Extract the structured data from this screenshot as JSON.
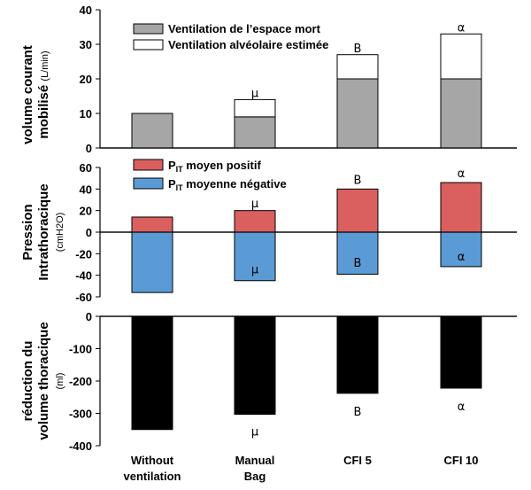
{
  "chart_data": [
    {
      "type": "bar",
      "stacked": true,
      "categories": [
        "Without ventilation",
        "Manual Bag",
        "CFI 5",
        "CFI 10"
      ],
      "ylabel": "volume courant mobilisé",
      "yunit": "(L/min)",
      "ylim": [
        0,
        40
      ],
      "yticks": [
        0,
        10,
        20,
        30,
        40
      ],
      "series": [
        {
          "name": "Ventilation de l’espace mort",
          "color": "#a6a6a6",
          "values": [
            10,
            9,
            20,
            20
          ]
        },
        {
          "name": "Ventilation alvéolaire estimée",
          "color": "#ffffff",
          "values": [
            0,
            5,
            7,
            13
          ]
        }
      ],
      "annotations": [
        {
          "category": "Manual Bag",
          "text": "µ",
          "value": 16
        },
        {
          "category": "CFI 5",
          "text": "B",
          "value": 29
        },
        {
          "category": "CFI 10",
          "text": "α",
          "value": 35
        }
      ]
    },
    {
      "type": "bar",
      "stacked": false,
      "categories": [
        "Without ventilation",
        "Manual Bag",
        "CFI 5",
        "CFI 10"
      ],
      "ylabel": "Pression Intrathoracique",
      "ylabel_lines": [
        "Pression",
        "Intrathoracique"
      ],
      "yunit": "(cmH2O)",
      "ylim": [
        -60,
        60
      ],
      "yticks": [
        -60,
        -40,
        -20,
        0,
        20,
        40,
        60
      ],
      "series": [
        {
          "name": "PIT moyen positif",
          "legend_main": "P",
          "legend_sub": "IT",
          "legend_rest": " moyen positif",
          "color": "#d9605f",
          "values": [
            14,
            20,
            40,
            46
          ]
        },
        {
          "name": "PIT moyenne négative",
          "legend_main": "P",
          "legend_sub": "IT",
          "legend_rest": " moyenne négative",
          "color": "#5b9bd5",
          "values": [
            -56,
            -45,
            -39,
            -32
          ]
        }
      ],
      "annotations": [
        {
          "category": "Manual Bag",
          "text": "µ",
          "value": 27
        },
        {
          "category": "CFI 5",
          "text": "B",
          "value": 49
        },
        {
          "category": "CFI 10",
          "text": "α",
          "value": 55
        },
        {
          "category": "Manual Bag",
          "text": "µ",
          "value": -34
        },
        {
          "category": "CFI 5",
          "text": "B",
          "value": -28
        },
        {
          "category": "CFI 10",
          "text": "α",
          "value": -22
        }
      ]
    },
    {
      "type": "bar",
      "stacked": false,
      "categories": [
        "Without ventilation",
        "Manual Bag",
        "CFI 5",
        "CFI 10"
      ],
      "ylabel": "réduction du volume thoracique",
      "ylabel_lines": [
        "réduction du",
        "volume thoracique"
      ],
      "yunit": "(ml)",
      "ylim": [
        -400,
        0
      ],
      "yticks": [
        -400,
        -300,
        -200,
        -100,
        0
      ],
      "series": [
        {
          "name": "réduction du volume thoracique",
          "color": "#000000",
          "values": [
            -350,
            -303,
            -238,
            -222
          ]
        }
      ],
      "annotations": [
        {
          "category": "Manual Bag",
          "text": "µ",
          "value": -355
        },
        {
          "category": "CFI 5",
          "text": "B",
          "value": -293
        },
        {
          "category": "CFI 10",
          "text": "α",
          "value": -277
        }
      ]
    }
  ],
  "xaxis": {
    "category_lines": [
      [
        "Without",
        "ventilation"
      ],
      [
        "Manual",
        "Bag"
      ],
      [
        "CFI 5"
      ],
      [
        "CFI 10"
      ]
    ]
  }
}
